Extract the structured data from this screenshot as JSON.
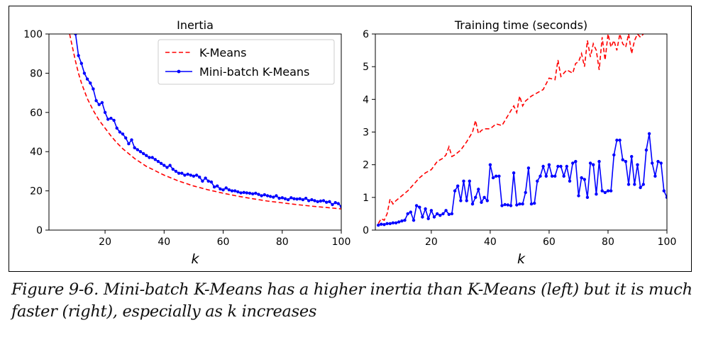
{
  "chart_data": [
    {
      "type": "line",
      "title": "Inertia",
      "xlabel": "k",
      "ylabel": "",
      "xlim": [
        1,
        100
      ],
      "ylim": [
        0,
        100
      ],
      "xticks": [
        20,
        40,
        60,
        80,
        100
      ],
      "yticks": [
        0,
        20,
        40,
        60,
        80,
        100
      ],
      "legend": "upper-right",
      "series": [
        {
          "name": "K-Means",
          "color": "#ff0000",
          "style": "dashed",
          "x": [
            8,
            9,
            10,
            11,
            12,
            13,
            14,
            15,
            16,
            18,
            20,
            22,
            24,
            26,
            28,
            30,
            32,
            34,
            36,
            38,
            40,
            45,
            50,
            55,
            60,
            65,
            70,
            75,
            80,
            85,
            90,
            95,
            100
          ],
          "y": [
            100,
            93,
            86,
            80,
            75,
            71,
            67,
            64,
            61,
            56,
            52,
            48,
            44.5,
            41.5,
            39,
            36.5,
            34.5,
            32.5,
            31,
            29.5,
            28,
            25,
            22.5,
            20.5,
            18.8,
            17.3,
            16,
            14.8,
            13.9,
            13,
            12.2,
            11.5,
            10.8
          ]
        },
        {
          "name": "Mini-batch K-Means",
          "color": "#0000ff",
          "style": "solid-marker",
          "x": [
            10,
            11,
            12,
            13,
            14,
            15,
            16,
            17,
            18,
            19,
            20,
            21,
            22,
            23,
            24,
            25,
            26,
            27,
            28,
            29,
            30,
            31,
            32,
            33,
            34,
            35,
            36,
            37,
            38,
            39,
            40,
            41,
            42,
            43,
            44,
            45,
            46,
            47,
            48,
            49,
            50,
            51,
            52,
            53,
            54,
            55,
            56,
            57,
            58,
            59,
            60,
            61,
            62,
            63,
            64,
            65,
            66,
            67,
            68,
            69,
            70,
            71,
            72,
            73,
            74,
            75,
            76,
            77,
            78,
            79,
            80,
            81,
            82,
            83,
            84,
            85,
            86,
            87,
            88,
            89,
            90,
            91,
            92,
            93,
            94,
            95,
            96,
            97,
            98,
            99,
            100
          ],
          "y": [
            100,
            89,
            85,
            80,
            77,
            75,
            72,
            66,
            64,
            65,
            60,
            56.5,
            57,
            56,
            52,
            50,
            49,
            47,
            44,
            46,
            42,
            41,
            40,
            39,
            38,
            37,
            37,
            36,
            35,
            34,
            33,
            32,
            33,
            31,
            30,
            29,
            29,
            28,
            28.5,
            28,
            27.5,
            28,
            27,
            25,
            26.5,
            25,
            24.5,
            22,
            22.5,
            21,
            20.5,
            21.5,
            20.5,
            20,
            20,
            19.5,
            19,
            19.2,
            19,
            18.8,
            18.5,
            18.8,
            18.2,
            17.5,
            18,
            17.5,
            17.2,
            16.8,
            17.5,
            16.2,
            16.5,
            16,
            15.5,
            16.5,
            16,
            15.8,
            16,
            15.5,
            16.2,
            15,
            15.5,
            15,
            14.5,
            14.8,
            15,
            14.2,
            14.5,
            13,
            14,
            13.5,
            12
          ]
        }
      ]
    },
    {
      "type": "line",
      "title": "Training time (seconds)",
      "xlabel": "k",
      "ylabel": "",
      "xlim": [
        1,
        100
      ],
      "ylim": [
        0,
        6
      ],
      "xticks": [
        20,
        40,
        60,
        80,
        100
      ],
      "yticks": [
        0,
        1,
        2,
        3,
        4,
        5,
        6
      ],
      "series": [
        {
          "name": "K-Means",
          "color": "#ff0000",
          "style": "dashed",
          "x": [
            2,
            3,
            4,
            5,
            6,
            7,
            8,
            10,
            12,
            14,
            16,
            18,
            20,
            22,
            24,
            25,
            26,
            27,
            28,
            30,
            32,
            34,
            35,
            36,
            37,
            38,
            40,
            42,
            44,
            45,
            46,
            48,
            49,
            50,
            51,
            52,
            54,
            56,
            58,
            60,
            62,
            63,
            64,
            66,
            68,
            69,
            70,
            71,
            72,
            73,
            74,
            75,
            76,
            77,
            78,
            79,
            80,
            81,
            82,
            83,
            84,
            85,
            86,
            87,
            88,
            89,
            90,
            91,
            92
          ],
          "y": [
            0.2,
            0.35,
            0.3,
            0.5,
            0.95,
            0.8,
            0.9,
            1.05,
            1.2,
            1.4,
            1.6,
            1.75,
            1.85,
            2.1,
            2.2,
            2.3,
            2.55,
            2.25,
            2.3,
            2.45,
            2.7,
            3,
            3.35,
            2.95,
            3.05,
            3.1,
            3.1,
            3.25,
            3.2,
            3.35,
            3.5,
            3.8,
            3.6,
            4.1,
            3.8,
            3.95,
            4.1,
            4.2,
            4.3,
            4.65,
            4.6,
            5.2,
            4.7,
            4.9,
            4.8,
            5.1,
            5.15,
            5.4,
            5.0,
            5.8,
            5.3,
            5.7,
            5.5,
            4.9,
            5.9,
            5.2,
            6.0,
            5.6,
            5.8,
            5.5,
            6.0,
            5.7,
            5.6,
            6.0,
            5.4,
            5.8,
            6.0,
            5.9,
            6.0
          ]
        },
        {
          "name": "Mini-batch K-Means",
          "color": "#0000ff",
          "style": "solid-marker",
          "x": [
            2,
            3,
            4,
            5,
            6,
            7,
            8,
            9,
            10,
            11,
            12,
            13,
            14,
            15,
            16,
            17,
            18,
            19,
            20,
            21,
            22,
            23,
            24,
            25,
            26,
            27,
            28,
            29,
            30,
            31,
            32,
            33,
            34,
            35,
            36,
            37,
            38,
            39,
            40,
            41,
            42,
            43,
            44,
            45,
            46,
            47,
            48,
            49,
            50,
            51,
            52,
            53,
            54,
            55,
            56,
            57,
            58,
            59,
            60,
            61,
            62,
            63,
            64,
            65,
            66,
            67,
            68,
            69,
            70,
            71,
            72,
            73,
            74,
            75,
            76,
            77,
            78,
            79,
            80,
            81,
            82,
            83,
            84,
            85,
            86,
            87,
            88,
            89,
            90,
            91,
            92,
            93,
            94,
            95,
            96,
            97,
            98,
            99,
            100
          ],
          "y": [
            0.15,
            0.18,
            0.17,
            0.2,
            0.2,
            0.22,
            0.22,
            0.25,
            0.28,
            0.3,
            0.5,
            0.55,
            0.3,
            0.75,
            0.7,
            0.4,
            0.65,
            0.35,
            0.6,
            0.4,
            0.5,
            0.45,
            0.5,
            0.6,
            0.48,
            0.5,
            1.2,
            1.35,
            0.9,
            1.5,
            0.9,
            1.5,
            0.8,
            1.0,
            1.25,
            0.85,
            1.0,
            0.9,
            2.0,
            1.6,
            1.65,
            1.65,
            0.75,
            0.78,
            0.77,
            0.75,
            1.75,
            0.77,
            0.8,
            0.8,
            1.15,
            1.9,
            0.8,
            0.82,
            1.5,
            1.65,
            1.95,
            1.65,
            2.0,
            1.65,
            1.65,
            1.95,
            1.95,
            1.65,
            1.95,
            1.5,
            2.05,
            2.1,
            1.05,
            1.6,
            1.55,
            1.0,
            2.05,
            2.0,
            1.1,
            2.1,
            1.2,
            1.15,
            1.2,
            1.2,
            2.3,
            2.75,
            2.75,
            2.15,
            2.1,
            1.4,
            2.25,
            1.4,
            2.0,
            1.3,
            1.4,
            2.45,
            2.95,
            2.05,
            1.65,
            2.1,
            2.05,
            1.2,
            1.0
          ]
        }
      ]
    }
  ],
  "caption": "Figure 9-6. Mini-batch K-Means has a higher inertia than K-Means (left) but it is much faster (right), especially as k increases"
}
